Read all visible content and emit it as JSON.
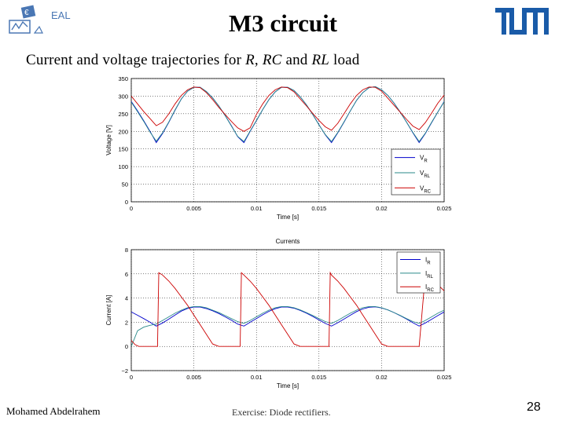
{
  "slide": {
    "title": "M3 circuit",
    "logo_text": "EAL",
    "heading_pre": "Current and voltage trajectories for ",
    "heading_r": "R",
    "heading_comma": ", ",
    "heading_rc": "RC",
    "heading_and": " and ",
    "heading_rl": "RL",
    "heading_post": " load",
    "footer_author": "Mohamed Abdelrahem",
    "footer_topic": "Exercise: Diode rectifiers.",
    "page_number": "28"
  },
  "colors": {
    "R": "#0000cc",
    "RL": "#2a8a8a",
    "RC": "#cc0000"
  },
  "chart_data": [
    {
      "type": "line",
      "title": "",
      "xlabel": "Time [s]",
      "ylabel": "Voltage [V]",
      "xlim": [
        0,
        0.025
      ],
      "ylim": [
        0,
        350
      ],
      "xticks": [
        0,
        0.005,
        0.01,
        0.015,
        0.02,
        0.025
      ],
      "xtick_labels": [
        "0",
        "0.005",
        "0.01",
        "0.015",
        "0.02",
        "0.025"
      ],
      "yticks": [
        0,
        50,
        100,
        150,
        200,
        250,
        300,
        350
      ],
      "grid": true,
      "legend_position": "right",
      "legend": [
        {
          "main": "V",
          "sub": "R"
        },
        {
          "main": "V",
          "sub": "RL"
        },
        {
          "main": "V",
          "sub": "RC"
        }
      ],
      "series": [
        {
          "name": "VR",
          "color_key": "R",
          "x": [
            0,
            0.0005,
            0.001,
            0.0015,
            0.002,
            0.0025,
            0.003,
            0.0035,
            0.004,
            0.0045,
            0.005,
            0.0055,
            0.006,
            0.0065,
            0.007,
            0.0075,
            0.008,
            0.0085,
            0.009,
            0.0095,
            0.01,
            0.0105,
            0.011,
            0.0115,
            0.012,
            0.0125,
            0.013,
            0.0135,
            0.014,
            0.0145,
            0.015,
            0.0155,
            0.016,
            0.0165,
            0.017,
            0.0175,
            0.018,
            0.0185,
            0.019,
            0.0195,
            0.02,
            0.0205,
            0.021,
            0.0215,
            0.022,
            0.0225,
            0.023,
            0.0235,
            0.024,
            0.0245,
            0.025
          ],
          "y": [
            285,
            258,
            230,
            200,
            168,
            194,
            226,
            260,
            292,
            314,
            325,
            325,
            313,
            295,
            272,
            245,
            216,
            185,
            168,
            200,
            230,
            262,
            290,
            312,
            325,
            325,
            316,
            298,
            275,
            248,
            219,
            190,
            168,
            196,
            226,
            258,
            288,
            310,
            324,
            327,
            318,
            302,
            280,
            254,
            226,
            196,
            168,
            194,
            225,
            255,
            285
          ]
        },
        {
          "name": "VRL",
          "color_key": "RL",
          "x": [
            0,
            0.0005,
            0.001,
            0.0015,
            0.002,
            0.0025,
            0.003,
            0.0035,
            0.004,
            0.0045,
            0.005,
            0.0055,
            0.006,
            0.0065,
            0.007,
            0.0075,
            0.008,
            0.0085,
            0.009,
            0.0095,
            0.01,
            0.0105,
            0.011,
            0.0115,
            0.012,
            0.0125,
            0.013,
            0.0135,
            0.014,
            0.0145,
            0.015,
            0.0155,
            0.016,
            0.0165,
            0.017,
            0.0175,
            0.018,
            0.0185,
            0.019,
            0.0195,
            0.02,
            0.0205,
            0.021,
            0.0215,
            0.022,
            0.0225,
            0.023,
            0.0235,
            0.024,
            0.0245,
            0.025
          ],
          "y": [
            283,
            256,
            228,
            198,
            172,
            196,
            227,
            261,
            292,
            314,
            325,
            325,
            313,
            295,
            272,
            245,
            215,
            186,
            171,
            201,
            231,
            262,
            290,
            312,
            325,
            325,
            316,
            298,
            275,
            248,
            218,
            191,
            171,
            197,
            227,
            258,
            288,
            310,
            324,
            327,
            318,
            302,
            280,
            254,
            226,
            197,
            171,
            195,
            226,
            255,
            284
          ]
        },
        {
          "name": "VRC",
          "color_key": "RC",
          "x": [
            0,
            0.0005,
            0.001,
            0.0015,
            0.002,
            0.0025,
            0.003,
            0.0035,
            0.004,
            0.0045,
            0.005,
            0.0055,
            0.006,
            0.0065,
            0.007,
            0.0075,
            0.008,
            0.0085,
            0.009,
            0.0095,
            0.01,
            0.0105,
            0.011,
            0.0115,
            0.012,
            0.0125,
            0.013,
            0.0135,
            0.014,
            0.0145,
            0.015,
            0.0155,
            0.016,
            0.0165,
            0.017,
            0.0175,
            0.018,
            0.0185,
            0.019,
            0.0195,
            0.02,
            0.0205,
            0.021,
            0.0215,
            0.022,
            0.0225,
            0.023,
            0.0235,
            0.024,
            0.0245,
            0.025
          ],
          "y": [
            300,
            278,
            256,
            236,
            216,
            226,
            250,
            278,
            302,
            318,
            326,
            324,
            310,
            290,
            268,
            248,
            228,
            210,
            200,
            210,
            248,
            278,
            302,
            318,
            326,
            324,
            312,
            292,
            272,
            251,
            231,
            213,
            203,
            223,
            250,
            278,
            302,
            318,
            326,
            325,
            314,
            294,
            274,
            254,
            234,
            215,
            205,
            225,
            252,
            280,
            303
          ]
        }
      ]
    },
    {
      "type": "line",
      "title": "Currents",
      "xlabel": "Time [s]",
      "ylabel": "Current [A]",
      "xlim": [
        0,
        0.025
      ],
      "ylim": [
        -2,
        8
      ],
      "xticks": [
        0,
        0.005,
        0.01,
        0.015,
        0.02,
        0.025
      ],
      "xtick_labels": [
        "0",
        "0.005",
        "0.01",
        "0.015",
        "0.02",
        "0.025"
      ],
      "yticks": [
        -2,
        0,
        2,
        4,
        6,
        8
      ],
      "ytick_labels": [
        "−2",
        "0",
        "2",
        "4",
        "6",
        "8"
      ],
      "grid": true,
      "legend_position": "top-right",
      "legend": [
        {
          "main": "I",
          "sub": "R"
        },
        {
          "main": "I",
          "sub": "RL"
        },
        {
          "main": "I",
          "sub": "RC"
        }
      ],
      "series": [
        {
          "name": "IR",
          "color_key": "R",
          "x": [
            0,
            0.0005,
            0.001,
            0.0015,
            0.002,
            0.0025,
            0.003,
            0.0035,
            0.004,
            0.0045,
            0.005,
            0.0055,
            0.006,
            0.0065,
            0.007,
            0.0075,
            0.008,
            0.0085,
            0.009,
            0.0095,
            0.01,
            0.0105,
            0.011,
            0.0115,
            0.012,
            0.0125,
            0.013,
            0.0135,
            0.014,
            0.0145,
            0.015,
            0.0155,
            0.016,
            0.0165,
            0.017,
            0.0175,
            0.018,
            0.0185,
            0.019,
            0.0195,
            0.02,
            0.0205,
            0.021,
            0.0215,
            0.022,
            0.0225,
            0.023,
            0.0235,
            0.024,
            0.0245,
            0.025
          ],
          "y": [
            2.85,
            2.58,
            2.3,
            2.0,
            1.68,
            1.94,
            2.26,
            2.6,
            2.92,
            3.14,
            3.25,
            3.25,
            3.13,
            2.95,
            2.72,
            2.45,
            2.16,
            1.85,
            1.68,
            2.0,
            2.3,
            2.62,
            2.9,
            3.12,
            3.25,
            3.25,
            3.16,
            2.98,
            2.75,
            2.48,
            2.19,
            1.9,
            1.68,
            1.96,
            2.26,
            2.58,
            2.88,
            3.1,
            3.24,
            3.27,
            3.18,
            3.02,
            2.8,
            2.54,
            2.26,
            1.96,
            1.68,
            1.94,
            2.25,
            2.55,
            2.85
          ]
        },
        {
          "name": "IRL",
          "color_key": "RL",
          "x": [
            0,
            0.0005,
            0.001,
            0.0015,
            0.002,
            0.0025,
            0.003,
            0.0035,
            0.004,
            0.0045,
            0.005,
            0.0055,
            0.006,
            0.0065,
            0.007,
            0.0075,
            0.008,
            0.0085,
            0.009,
            0.0095,
            0.01,
            0.0105,
            0.011,
            0.0115,
            0.012,
            0.0125,
            0.013,
            0.0135,
            0.014,
            0.0145,
            0.015,
            0.0155,
            0.016,
            0.0165,
            0.017,
            0.0175,
            0.018,
            0.0185,
            0.019,
            0.0195,
            0.02,
            0.0205,
            0.021,
            0.0215,
            0.022,
            0.0225,
            0.023,
            0.0235,
            0.024,
            0.0245,
            0.025
          ],
          "y": [
            0.0,
            1.3,
            1.6,
            1.75,
            1.85,
            2.15,
            2.45,
            2.75,
            3.0,
            3.2,
            3.3,
            3.3,
            3.2,
            3.0,
            2.8,
            2.55,
            2.3,
            2.05,
            1.9,
            2.15,
            2.45,
            2.75,
            3.0,
            3.2,
            3.3,
            3.3,
            3.2,
            3.02,
            2.8,
            2.56,
            2.3,
            2.06,
            1.9,
            2.15,
            2.45,
            2.75,
            3.0,
            3.2,
            3.3,
            3.3,
            3.2,
            3.02,
            2.8,
            2.56,
            2.3,
            2.06,
            1.9,
            2.15,
            2.45,
            2.75,
            3.0
          ]
        },
        {
          "name": "IRC",
          "color_key": "RC",
          "x": [
            0,
            0.0003,
            0.0006,
            0.001,
            0.0015,
            0.002,
            0.0021,
            0.0022,
            0.0025,
            0.003,
            0.0035,
            0.004,
            0.0045,
            0.005,
            0.0055,
            0.006,
            0.0065,
            0.007,
            0.0075,
            0.0078,
            0.008,
            0.0085,
            0.0087,
            0.0088,
            0.009,
            0.0095,
            0.01,
            0.0105,
            0.011,
            0.0115,
            0.012,
            0.0125,
            0.013,
            0.0135,
            0.014,
            0.0145,
            0.015,
            0.0155,
            0.0158,
            0.0159,
            0.016,
            0.0165,
            0.017,
            0.0175,
            0.018,
            0.0185,
            0.019,
            0.0195,
            0.02,
            0.0205,
            0.021,
            0.0215,
            0.022,
            0.0225,
            0.023,
            0.0235,
            0.024,
            0.0245,
            0.025
          ],
          "y": [
            0.5,
            0.15,
            0.0,
            0.0,
            0.0,
            0.0,
            0.0,
            6.1,
            5.9,
            5.4,
            4.8,
            4.1,
            3.4,
            2.6,
            1.8,
            1.0,
            0.2,
            0.0,
            0.0,
            0.0,
            0.0,
            0.0,
            0.0,
            6.1,
            5.9,
            5.4,
            4.8,
            4.1,
            3.4,
            2.6,
            1.8,
            1.0,
            0.2,
            0.0,
            0.0,
            0.0,
            0.0,
            0.0,
            0.0,
            6.1,
            5.9,
            5.4,
            4.8,
            4.1,
            3.4,
            2.6,
            1.8,
            1.0,
            0.2,
            0.0,
            0.0,
            0.0,
            0.0,
            0.0,
            0.0,
            6.0,
            5.6,
            5.1,
            4.6
          ]
        }
      ]
    }
  ]
}
